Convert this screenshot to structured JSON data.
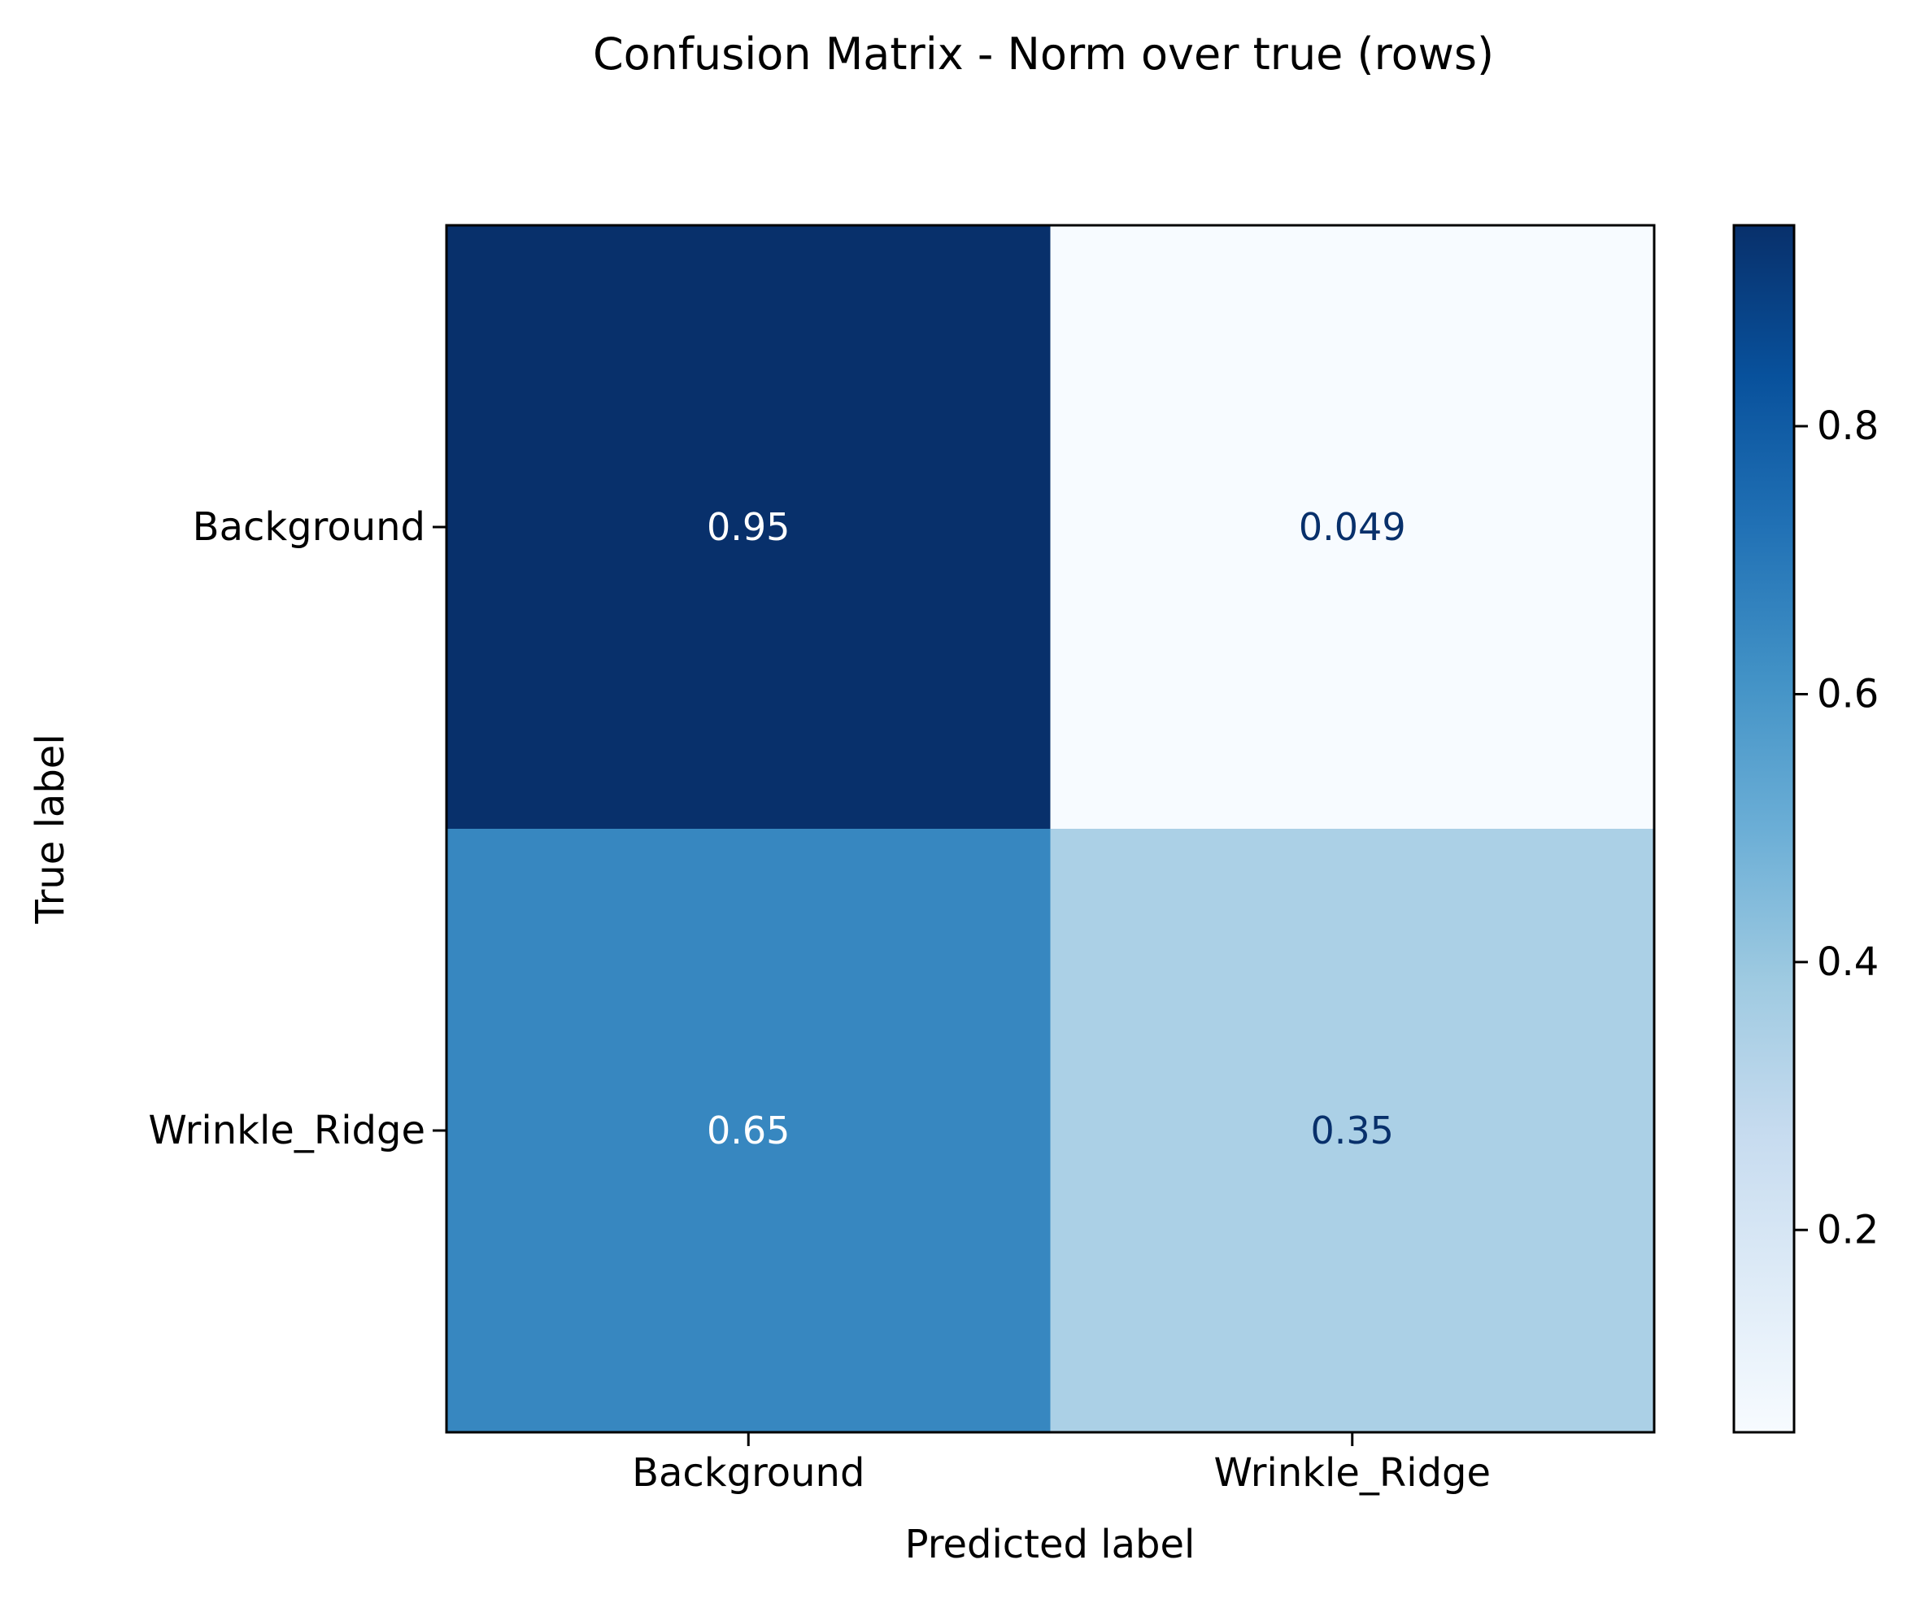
{
  "chart_data": {
    "type": "heatmap",
    "title": "Confusion Matrix - Norm over true (rows)",
    "xlabel": "Predicted label",
    "ylabel": "True label",
    "x_categories": [
      "Background",
      "Wrinkle_Ridge"
    ],
    "y_categories": [
      "Background",
      "Wrinkle_Ridge"
    ],
    "values": [
      [
        0.95,
        0.049
      ],
      [
        0.65,
        0.35
      ]
    ],
    "cell_labels": [
      [
        "0.95",
        "0.049"
      ],
      [
        "0.65",
        "0.35"
      ]
    ],
    "colormap": "Blues",
    "colorbar": {
      "range": [
        0.049,
        0.95
      ],
      "ticks": [
        0.2,
        0.4,
        0.6,
        0.8
      ],
      "tick_labels": [
        "0.2",
        "0.4",
        "0.6",
        "0.8"
      ]
    },
    "grid": false
  },
  "colors": {
    "text_on_dark": "#ffffff",
    "text_on_light": "#08306b",
    "axis": "#000000"
  }
}
